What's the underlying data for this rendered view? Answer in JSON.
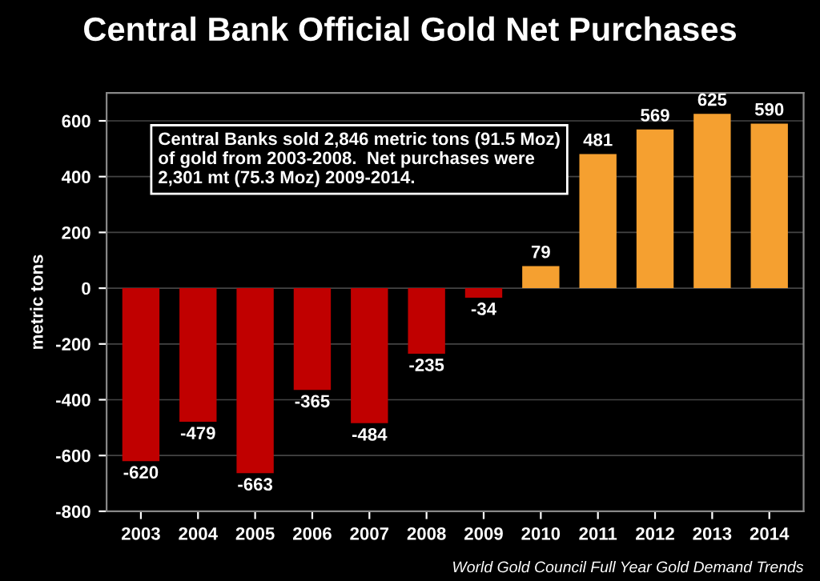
{
  "chart_data": {
    "type": "bar",
    "title": "Central Bank Official Gold Net Purchases",
    "ylabel": "metric tons",
    "categories": [
      "2003",
      "2004",
      "2005",
      "2006",
      "2007",
      "2008",
      "2009",
      "2010",
      "2011",
      "2012",
      "2013",
      "2014"
    ],
    "values": [
      -620,
      -479,
      -663,
      -365,
      -484,
      -235,
      -34,
      79,
      481,
      569,
      625,
      590
    ],
    "colors": [
      "#c00000",
      "#c00000",
      "#c00000",
      "#c00000",
      "#c00000",
      "#c00000",
      "#c00000",
      "#f5a030",
      "#f5a030",
      "#f5a030",
      "#f5a030",
      "#f5a030"
    ],
    "ylim": [
      -800,
      700
    ],
    "yticks": [
      -800,
      -600,
      -400,
      -200,
      0,
      200,
      400,
      600
    ],
    "grid": "y",
    "data_labels": true,
    "annotations": [
      "Central Banks sold 2,846 metric tons (91.5 Moz) of gold from 2003-2008.  Net purchases were 2,301 mt (75.3 Moz) 2009-2014.",
      "World Gold Council Full Year Gold Demand Trends"
    ]
  }
}
